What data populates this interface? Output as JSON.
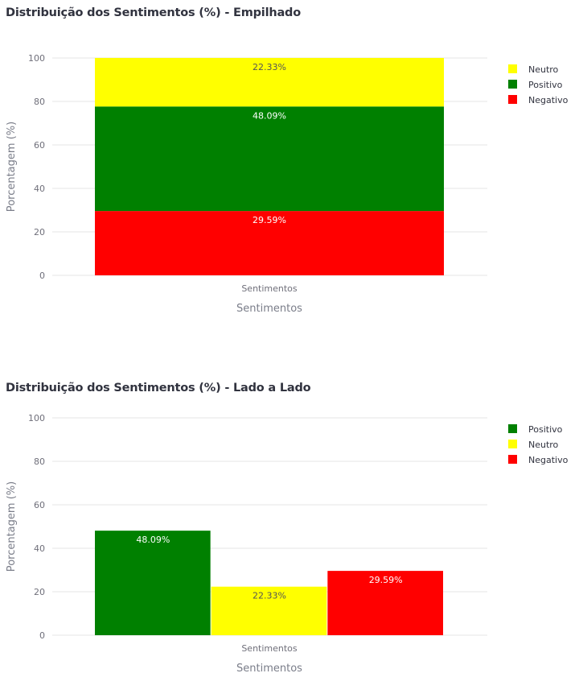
{
  "chart_data": [
    {
      "type": "bar",
      "barmode": "stack",
      "title": "Distribuição dos Sentimentos (%) - Empilhado",
      "xlabel": "Sentimentos",
      "ylabel": "Porcentagem (%)",
      "categories": [
        "Sentimentos"
      ],
      "ylim": [
        0,
        100
      ],
      "yticks": [
        0,
        20,
        40,
        60,
        80,
        100
      ],
      "grid": true,
      "legend_position": "top-right",
      "series": [
        {
          "name": "Negativo",
          "values": [
            29.59
          ],
          "label": "29.59%",
          "color": "#ff0000",
          "label_color": "#ffffff"
        },
        {
          "name": "Positivo",
          "values": [
            48.09
          ],
          "label": "48.09%",
          "color": "#008000",
          "label_color": "#ffffff"
        },
        {
          "name": "Neutro",
          "values": [
            22.33
          ],
          "label": "22.33%",
          "color": "#ffff00",
          "label_color": "#555555"
        }
      ],
      "legend_order": [
        "Neutro",
        "Positivo",
        "Negativo"
      ]
    },
    {
      "type": "bar",
      "barmode": "group",
      "title": "Distribuição dos Sentimentos (%) - Lado a Lado",
      "xlabel": "Sentimentos",
      "ylabel": "Porcentagem (%)",
      "categories": [
        "Sentimentos"
      ],
      "ylim": [
        0,
        100
      ],
      "yticks": [
        0,
        20,
        40,
        60,
        80,
        100
      ],
      "grid": true,
      "legend_position": "top-right",
      "series": [
        {
          "name": "Positivo",
          "values": [
            48.09
          ],
          "label": "48.09%",
          "color": "#008000",
          "label_color": "#ffffff"
        },
        {
          "name": "Neutro",
          "values": [
            22.33
          ],
          "label": "22.33%",
          "color": "#ffff00",
          "label_color": "#555555"
        },
        {
          "name": "Negativo",
          "values": [
            29.59
          ],
          "label": "29.59%",
          "color": "#ff0000",
          "label_color": "#ffffff"
        }
      ],
      "legend_order": [
        "Positivo",
        "Neutro",
        "Negativo"
      ]
    }
  ]
}
